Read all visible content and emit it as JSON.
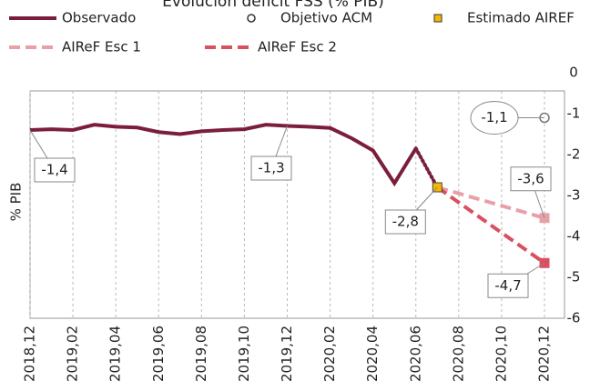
{
  "chart_data": {
    "type": "line",
    "title": "Evolución déficit FSS (% PIB)",
    "y_label": "% PIB",
    "categories": [
      "2018,12",
      null,
      "2019,02",
      null,
      "2019,04",
      null,
      "2019,06",
      null,
      "2019,08",
      null,
      "2019,10",
      null,
      "2019,12",
      null,
      "2020,02",
      null,
      "2020,04",
      null,
      "2020,06",
      null,
      "2020,08",
      null,
      "2020,10",
      null,
      "2020,12"
    ],
    "ylim": [
      -6,
      0
    ],
    "yticks": [
      0,
      -1,
      -2,
      -3,
      -4,
      -5,
      -6
    ],
    "y_axis_side": "right",
    "grid": "x",
    "series": [
      {
        "name": "Observado",
        "color": "#7b1e3a",
        "style": "solid",
        "marker": "none",
        "values": [
          -1.4,
          -1.38,
          -1.4,
          -1.27,
          -1.32,
          -1.34,
          -1.45,
          -1.5,
          -1.43,
          -1.4,
          -1.38,
          -1.27,
          -1.3,
          -1.32,
          -1.35,
          -1.6,
          -1.9,
          -2.7,
          -1.85,
          null,
          null,
          null,
          null,
          null,
          null
        ],
        "value_labels": [
          "-1,4",
          null,
          null,
          null,
          null,
          null,
          null,
          null,
          null,
          null,
          null,
          null,
          "-1,3",
          null,
          null,
          null,
          null,
          null,
          null,
          null,
          null,
          null,
          null,
          null,
          null
        ]
      },
      {
        "name": "Objetivo ACM",
        "color": "#777777",
        "style": "none",
        "marker": "open-circle",
        "values": [
          null,
          null,
          null,
          null,
          null,
          null,
          null,
          null,
          null,
          null,
          null,
          null,
          null,
          null,
          null,
          null,
          null,
          null,
          null,
          null,
          null,
          null,
          null,
          null,
          -1.1
        ],
        "value_labels": [
          null,
          null,
          null,
          null,
          null,
          null,
          null,
          null,
          null,
          null,
          null,
          null,
          null,
          null,
          null,
          null,
          null,
          null,
          null,
          null,
          null,
          null,
          null,
          null,
          "-1,1"
        ]
      },
      {
        "name": "Estimado AIREF",
        "color": "#f5b800",
        "style": "none",
        "marker": "square",
        "values": [
          null,
          null,
          null,
          null,
          null,
          null,
          null,
          null,
          null,
          null,
          null,
          null,
          null,
          null,
          null,
          null,
          null,
          null,
          null,
          -2.8,
          null,
          null,
          null,
          null,
          null
        ],
        "value_labels": [
          null,
          null,
          null,
          null,
          null,
          null,
          null,
          null,
          null,
          null,
          null,
          null,
          null,
          null,
          null,
          null,
          null,
          null,
          null,
          "-2,8",
          null,
          null,
          null,
          null,
          null
        ]
      },
      {
        "name": "AIReF Esc 1",
        "color": "#e8a0a8",
        "style": "dashed",
        "marker": "square",
        "values": [
          null,
          null,
          null,
          null,
          null,
          null,
          null,
          null,
          null,
          null,
          null,
          null,
          null,
          null,
          null,
          null,
          null,
          null,
          null,
          -2.8,
          null,
          null,
          null,
          null,
          -3.55
        ],
        "value_labels": [
          null,
          null,
          null,
          null,
          null,
          null,
          null,
          null,
          null,
          null,
          null,
          null,
          null,
          null,
          null,
          null,
          null,
          null,
          null,
          null,
          null,
          null,
          null,
          null,
          "-3,6"
        ]
      },
      {
        "name": "AIReF Esc 2",
        "color": "#d9505f",
        "style": "dashed",
        "marker": "square",
        "values": [
          null,
          null,
          null,
          null,
          null,
          null,
          null,
          null,
          null,
          null,
          null,
          null,
          null,
          null,
          null,
          null,
          null,
          null,
          null,
          -2.8,
          null,
          null,
          null,
          null,
          -4.65
        ],
        "value_labels": [
          null,
          null,
          null,
          null,
          null,
          null,
          null,
          null,
          null,
          null,
          null,
          null,
          null,
          null,
          null,
          null,
          null,
          null,
          null,
          null,
          null,
          null,
          null,
          null,
          "-4,7"
        ]
      }
    ]
  }
}
